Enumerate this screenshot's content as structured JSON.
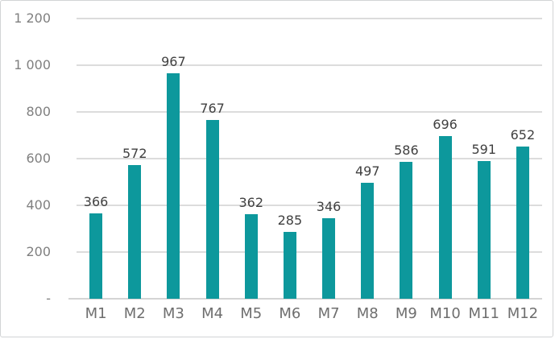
{
  "chart_data": {
    "type": "bar",
    "title": "",
    "xlabel": "",
    "ylabel": "",
    "categories": [
      "M1",
      "M2",
      "M3",
      "M4",
      "M5",
      "M6",
      "M7",
      "M8",
      "M9",
      "M10",
      "M11",
      "M12"
    ],
    "values": [
      366,
      572,
      967,
      767,
      362,
      285,
      346,
      497,
      586,
      696,
      591,
      652
    ],
    "ylim": [
      0,
      1200
    ],
    "ytick_interval": 200,
    "ytick_labels_bottom_up": [
      "-",
      "200",
      "400",
      "600",
      "800",
      "1 000",
      "1 200"
    ],
    "grid": true,
    "legend": "none",
    "data_labels": true,
    "colors": {
      "bar": "#0d989c",
      "data_label": "#404040",
      "axis_tick_text": "#808080",
      "x_tick_text": "#6e6e6e",
      "gridline": "#dcdcdc",
      "frame_border": "#d2d4d5",
      "background": "#ffffff"
    }
  }
}
